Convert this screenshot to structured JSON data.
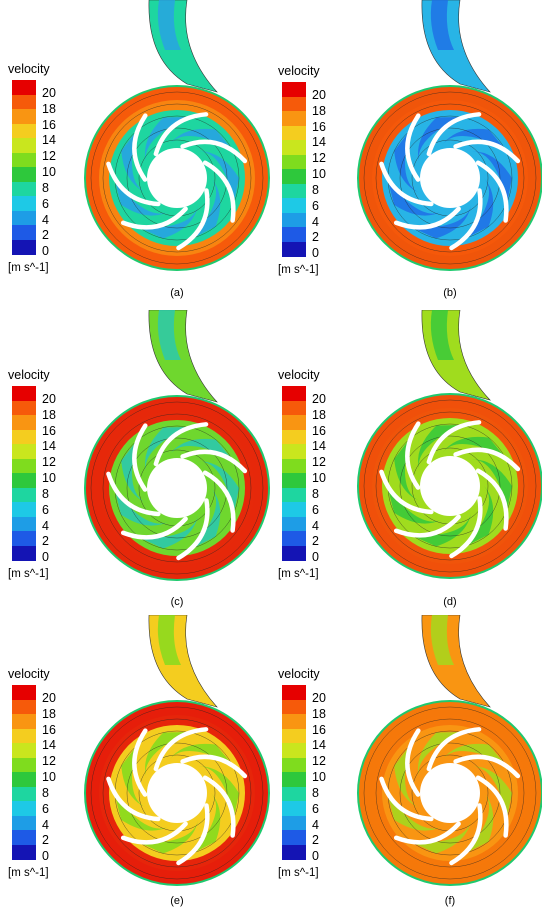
{
  "figure": {
    "legend_title": "velocity",
    "legend_unit": "[m s^-1]",
    "legend_ticks": [
      "20",
      "18",
      "16",
      "14",
      "12",
      "10",
      "8",
      "6",
      "4",
      "2",
      "0"
    ],
    "legend_colors": [
      "#e60000",
      "#f65a0a",
      "#f99512",
      "#f4cd1f",
      "#c9e61e",
      "#7fdc1e",
      "#2ec83c",
      "#1ed6a0",
      "#1ec9e6",
      "#1e9de6",
      "#1e5ae6",
      "#1414b4"
    ],
    "panels": [
      {
        "label": "(a)",
        "dominant_colors": [
          "#28a0e6",
          "#1ed6a0",
          "#f99512"
        ],
        "casing_color": "#f65a0a"
      },
      {
        "label": "(b)",
        "dominant_colors": [
          "#1e6ee6",
          "#28b4e6",
          "#f65a0a"
        ],
        "casing_color": "#f0550a"
      },
      {
        "label": "(c)",
        "dominant_colors": [
          "#28c8b4",
          "#6fd72e",
          "#e62a0a"
        ],
        "casing_color": "#e6280a"
      },
      {
        "label": "(d)",
        "dominant_colors": [
          "#32c83c",
          "#a0dc1e",
          "#f0550a"
        ],
        "casing_color": "#f0500a"
      },
      {
        "label": "(e)",
        "dominant_colors": [
          "#7fdc1e",
          "#f4cd1f",
          "#e6280a"
        ],
        "casing_color": "#e61e0a"
      },
      {
        "label": "(f)",
        "dominant_colors": [
          "#a0dc1e",
          "#f99512",
          "#f6780a"
        ],
        "casing_color": "#f5780a"
      }
    ]
  }
}
